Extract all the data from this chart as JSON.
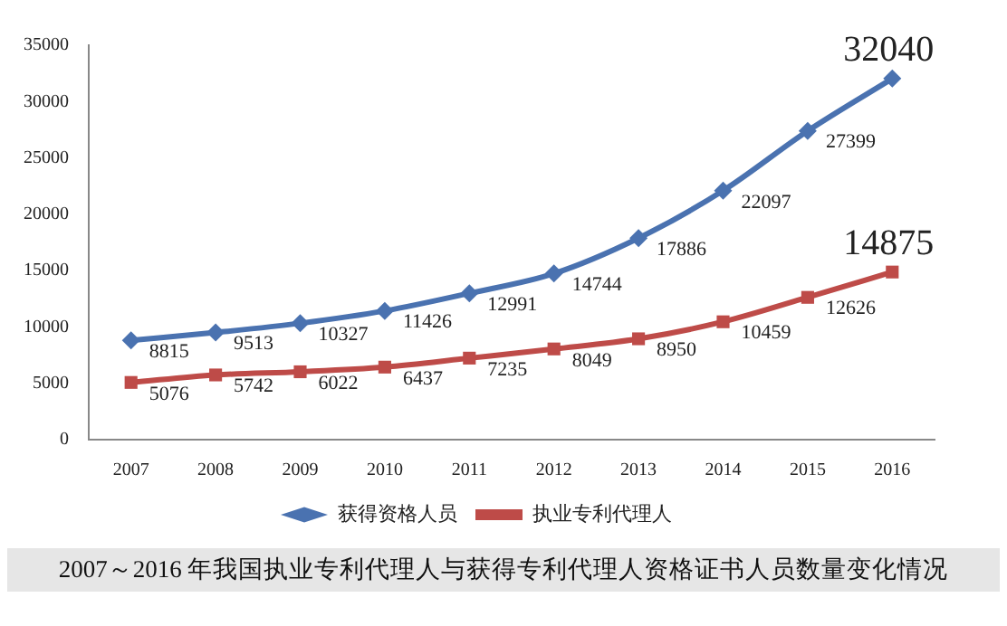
{
  "chart_data": {
    "type": "line",
    "title": "2007～2016 年我国执业专利代理人与获得专利代理人资格证书人员数量变化情况",
    "categories": [
      "2007",
      "2008",
      "2009",
      "2010",
      "2011",
      "2012",
      "2013",
      "2014",
      "2015",
      "2016"
    ],
    "series": [
      {
        "name": "获得资格人员",
        "color": "#4a72b0",
        "marker": "diamond",
        "values": [
          8815,
          9513,
          10327,
          11426,
          12991,
          14744,
          17886,
          22097,
          27399,
          32040
        ]
      },
      {
        "name": "执业专利代理人",
        "color": "#be4b48",
        "marker": "square",
        "values": [
          5076,
          5742,
          6022,
          6437,
          7235,
          8049,
          8950,
          10459,
          12626,
          14875
        ]
      }
    ],
    "ylim": [
      0,
      35000
    ],
    "yticks": [
      0,
      5000,
      10000,
      15000,
      20000,
      25000,
      30000,
      35000
    ],
    "grid": false,
    "legend": "bottom",
    "data_labels": true,
    "line_style": "solid"
  }
}
